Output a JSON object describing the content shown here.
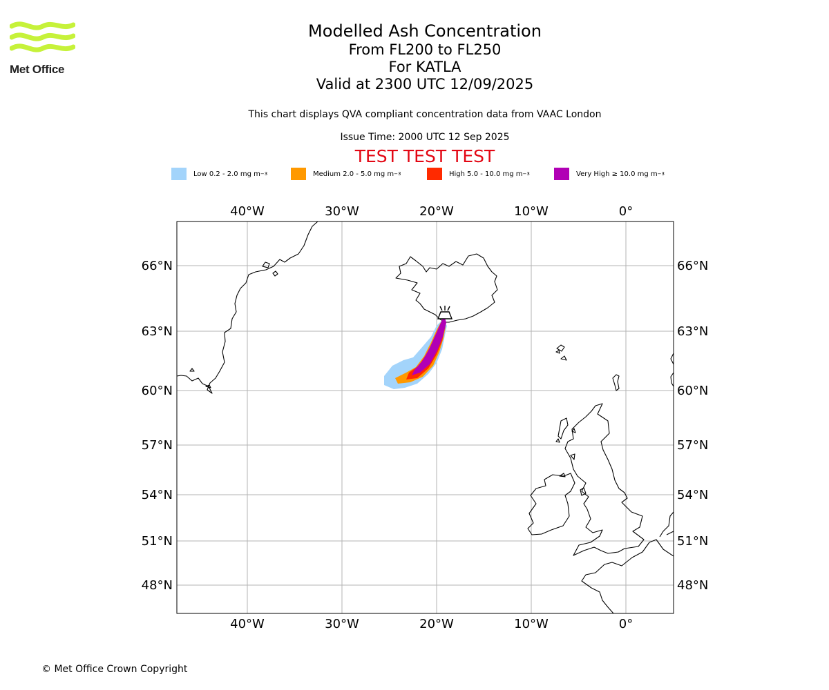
{
  "brand": {
    "name": "Met Office",
    "logo_color": "#c6f23a"
  },
  "header": {
    "title": "Modelled Ash Concentration",
    "levels": "From FL200 to FL250",
    "volcano": "For KATLA",
    "valid": "Valid at 2300 UTC 12/09/2025",
    "source_note": "This chart displays QVA compliant concentration data from VAAC London",
    "issue_time": "Issue Time: 2000 UTC 12 Sep 2025",
    "test_banner": "TEST TEST TEST"
  },
  "legend": {
    "items": [
      {
        "level": "Low",
        "range": "0.2 - 2.0 mg m",
        "color": "#a3d4fb"
      },
      {
        "level": "Medium",
        "range": "2.0 - 5.0 mg m",
        "color": "#ff9900"
      },
      {
        "level": "High",
        "range": "5.0 - 10.0 mg m",
        "color": "#ff2a00"
      },
      {
        "level": "Very High",
        "range": "≥  10.0 mg m",
        "color": "#b100b5"
      }
    ],
    "unit_exponent": "−3"
  },
  "map": {
    "longitude_labels": [
      "40°W",
      "30°W",
      "20°W",
      "10°W",
      "0°"
    ],
    "latitude_labels": [
      "66°N",
      "63°N",
      "60°N",
      "57°N",
      "54°N",
      "51°N",
      "48°N"
    ],
    "volcano_icon": "volcano-icon"
  },
  "footer": {
    "copyright": "© Met Office Crown Copyright"
  }
}
